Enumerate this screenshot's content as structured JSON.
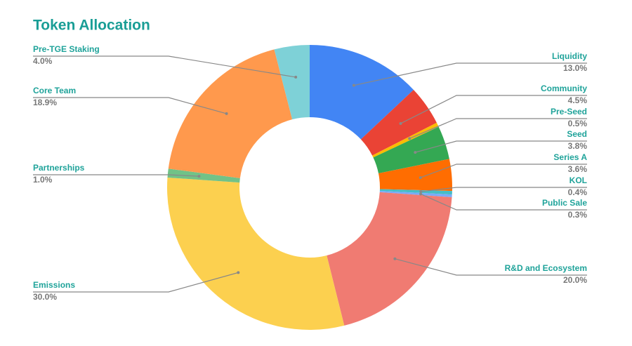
{
  "chart_data": {
    "type": "donut",
    "title": "Token Allocation",
    "categories": [
      "Liquidity",
      "Community",
      "Pre-Seed",
      "Seed",
      "Series A",
      "KOL",
      "Public Sale",
      "R&D and Ecosystem",
      "Emissions",
      "Partnerships",
      "Core Team",
      "Pre-TGE Staking"
    ],
    "values": [
      13.0,
      4.5,
      0.5,
      3.8,
      3.6,
      0.4,
      0.3,
      20.0,
      30.0,
      1.0,
      18.9,
      4.0
    ],
    "value_labels": [
      "13.0%",
      "4.5%",
      "0.5%",
      "3.8%",
      "3.6%",
      "0.4%",
      "0.3%",
      "20.0%",
      "30.0%",
      "1.0%",
      "18.9%",
      "4.0%"
    ],
    "colors": [
      "#4285f4",
      "#ea4335",
      "#fbbc04",
      "#34a853",
      "#ff6d01",
      "#46bdc6",
      "#7baaf7",
      "#f07b72",
      "#fcd04f",
      "#71c287",
      "#ff994d",
      "#7ed1d7"
    ]
  }
}
